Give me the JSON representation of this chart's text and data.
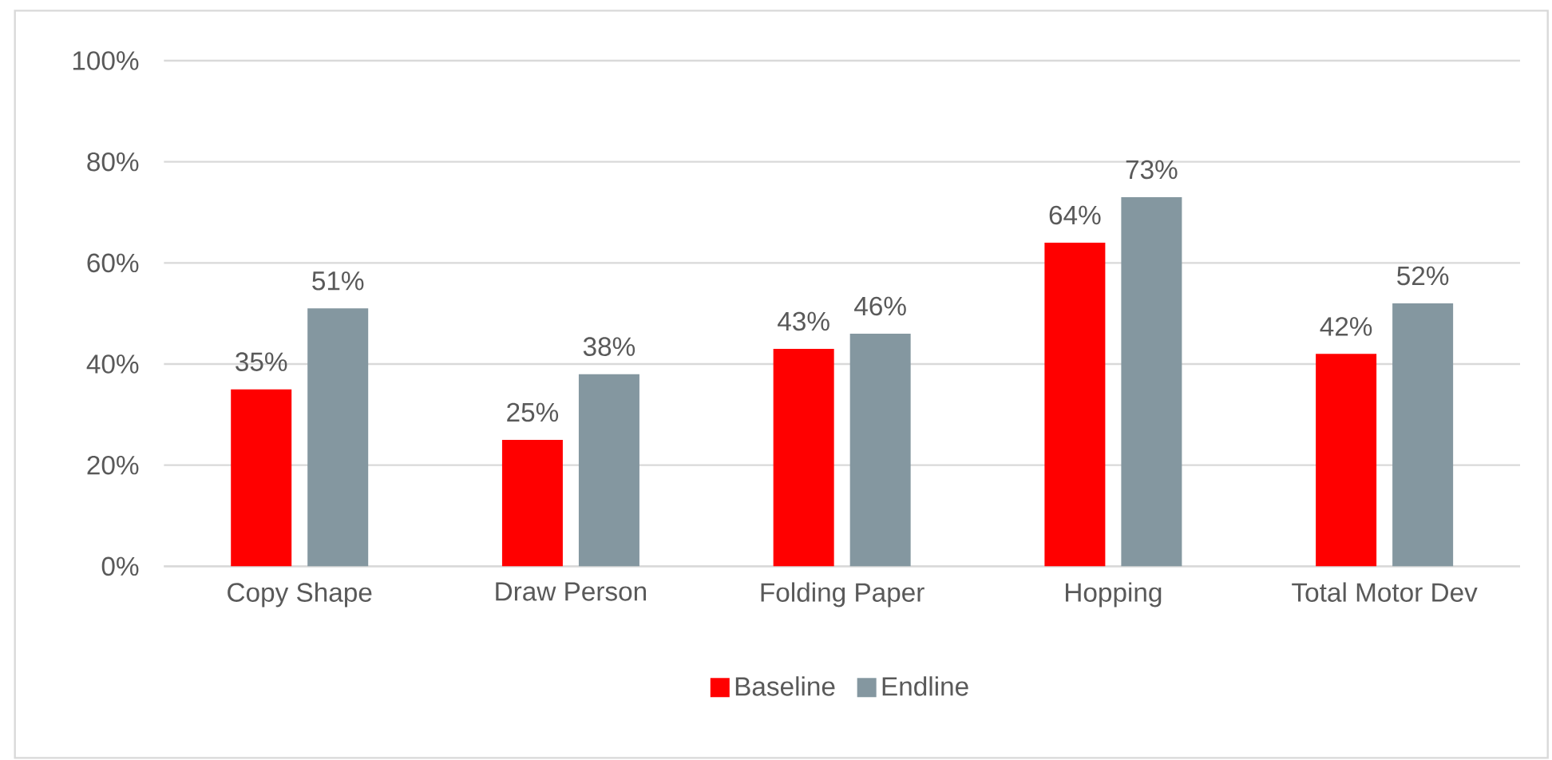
{
  "chart_data": {
    "type": "bar",
    "categories": [
      "Copy Shape",
      "Draw Person",
      "Folding Paper",
      "Hopping",
      "Total Motor Dev"
    ],
    "series": [
      {
        "name": "Baseline",
        "color": "#ff0000",
        "values": [
          35,
          25,
          43,
          64,
          42
        ],
        "value_labels": [
          "35%",
          "25%",
          "43%",
          "64%",
          "42%"
        ]
      },
      {
        "name": "Endline",
        "color": "#8497a0",
        "values": [
          51,
          38,
          46,
          73,
          52
        ],
        "value_labels": [
          "51%",
          "38%",
          "46%",
          "73%",
          "52%"
        ]
      }
    ],
    "ylim": [
      0,
      100
    ],
    "yticks": [
      {
        "value": 0,
        "label": "0%"
      },
      {
        "value": 20,
        "label": "20%"
      },
      {
        "value": 40,
        "label": "40%"
      },
      {
        "value": 60,
        "label": "60%"
      },
      {
        "value": 80,
        "label": "80%"
      },
      {
        "value": 100,
        "label": "100%"
      }
    ],
    "grid": "y",
    "legend": "bottom"
  }
}
